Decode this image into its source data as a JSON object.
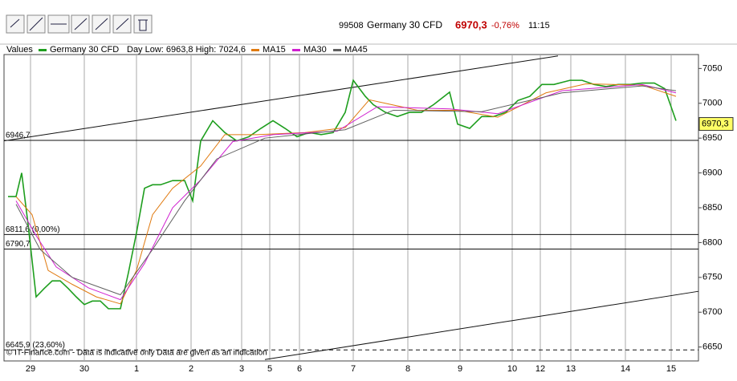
{
  "header": {
    "code": "99508",
    "instrument": "Germany 30 CFD",
    "price": "6970,3",
    "change": "-0,76%",
    "time": "11:15"
  },
  "chart_data": {
    "type": "line",
    "legend_title": "Values",
    "day_range": "Day Low: 6963,8 High: 7024,6",
    "series": [
      {
        "name": "Germany 30 CFD",
        "color": "#1e9e1e",
        "x": [
          5,
          15,
          22,
          30,
          40,
          50,
          60,
          70,
          80,
          90,
          100,
          110,
          120,
          130,
          145,
          155,
          165,
          175,
          185,
          195,
          210,
          225,
          235,
          245,
          260,
          275,
          290,
          305,
          320,
          335,
          350,
          365,
          380,
          395,
          410,
          425,
          435,
          450,
          460,
          475,
          490,
          505,
          520,
          535,
          555,
          565,
          580,
          595,
          610,
          625,
          640,
          655,
          670,
          685,
          705,
          720,
          735,
          750,
          765,
          780,
          795,
          810,
          823,
          830,
          837
        ],
        "values": [
          6866,
          6866,
          6900,
          6826,
          6722,
          6734,
          6745,
          6745,
          6734,
          6722,
          6711,
          6716,
          6716,
          6705,
          6705,
          6757,
          6814,
          6878,
          6883,
          6883,
          6889,
          6889,
          6860,
          6946,
          6975,
          6958,
          6946,
          6952,
          6964,
          6975,
          6964,
          6952,
          6958,
          6955,
          6958,
          6987,
          7033,
          7010,
          6998,
          6987,
          6981,
          6987,
          6987,
          6998,
          7016,
          6970,
          6964,
          6981,
          6981,
          6987,
          7004,
          7010,
          7027,
          7027,
          7033,
          7033,
          7027,
          7024,
          7027,
          7027,
          7029,
          7029,
          7021,
          6998,
          6975
        ]
      },
      {
        "name": "MA15",
        "color": "#e07a10",
        "x": [
          15,
          35,
          55,
          85,
          115,
          145,
          165,
          185,
          210,
          245,
          275,
          315,
          375,
          425,
          455,
          515,
          565,
          615,
          675,
          725,
          795,
          837
        ],
        "values": [
          6866,
          6840,
          6760,
          6740,
          6722,
          6712,
          6760,
          6840,
          6878,
          6910,
          6955,
          6955,
          6958,
          6965,
          7005,
          6990,
          6990,
          6980,
          7015,
          7028,
          7026,
          7010
        ]
      },
      {
        "name": "MA30",
        "color": "#d020d0",
        "x": [
          15,
          40,
          65,
          105,
          145,
          175,
          210,
          245,
          285,
          335,
          415,
          465,
          555,
          615,
          695,
          795,
          837
        ],
        "values": [
          6860,
          6810,
          6765,
          6735,
          6718,
          6770,
          6850,
          6890,
          6945,
          6955,
          6960,
          6995,
          6992,
          6985,
          7018,
          7027,
          7015
        ]
      },
      {
        "name": "MA45",
        "color": "#606060",
        "x": [
          15,
          45,
          85,
          145,
          185,
          225,
          265,
          325,
          425,
          485,
          595,
          695,
          795,
          837
        ],
        "values": [
          6855,
          6790,
          6750,
          6725,
          6790,
          6860,
          6920,
          6950,
          6962,
          6990,
          6988,
          7015,
          7025,
          7018
        ]
      }
    ],
    "xlim": [
      0,
      865
    ],
    "xticks": [
      {
        "value": 33,
        "label": "29"
      },
      {
        "value": 100,
        "label": "30"
      },
      {
        "value": 165,
        "label": "1"
      },
      {
        "value": 233,
        "label": "2"
      },
      {
        "value": 296,
        "label": "3"
      },
      {
        "value": 331,
        "label": "5"
      },
      {
        "value": 368,
        "label": "6"
      },
      {
        "value": 435,
        "label": "7"
      },
      {
        "value": 503,
        "label": "8"
      },
      {
        "value": 568,
        "label": "9"
      },
      {
        "value": 633,
        "label": "10"
      },
      {
        "value": 668,
        "label": "12"
      },
      {
        "value": 706,
        "label": "13"
      },
      {
        "value": 774,
        "label": "14"
      },
      {
        "value": 831,
        "label": "15"
      }
    ],
    "ylim": [
      6630,
      7070
    ],
    "yticks": [
      6650,
      6700,
      6750,
      6800,
      6850,
      6900,
      6950,
      7000,
      7050
    ],
    "levels": [
      {
        "value": 6946.7,
        "label": "6946,7",
        "dashed": false
      },
      {
        "value": 6811.6,
        "label": "6811,6 (0,00%)",
        "dashed": false
      },
      {
        "value": 6790.7,
        "label": "6790,7",
        "dashed": false
      },
      {
        "value": 6645.9,
        "label": "6645,9 (23,60%)",
        "dashed": true
      }
    ],
    "trendlines": [
      {
        "x": [
          0,
          690
        ],
        "values": [
          6946,
          7068
        ]
      },
      {
        "x": [
          325,
          865
        ],
        "values": [
          6632,
          6730
        ]
      }
    ],
    "last": {
      "value": 6970.3,
      "label": "6970,3"
    },
    "footer": "© IT-Finance.com - Data is indicative only Data are given as an indication"
  }
}
